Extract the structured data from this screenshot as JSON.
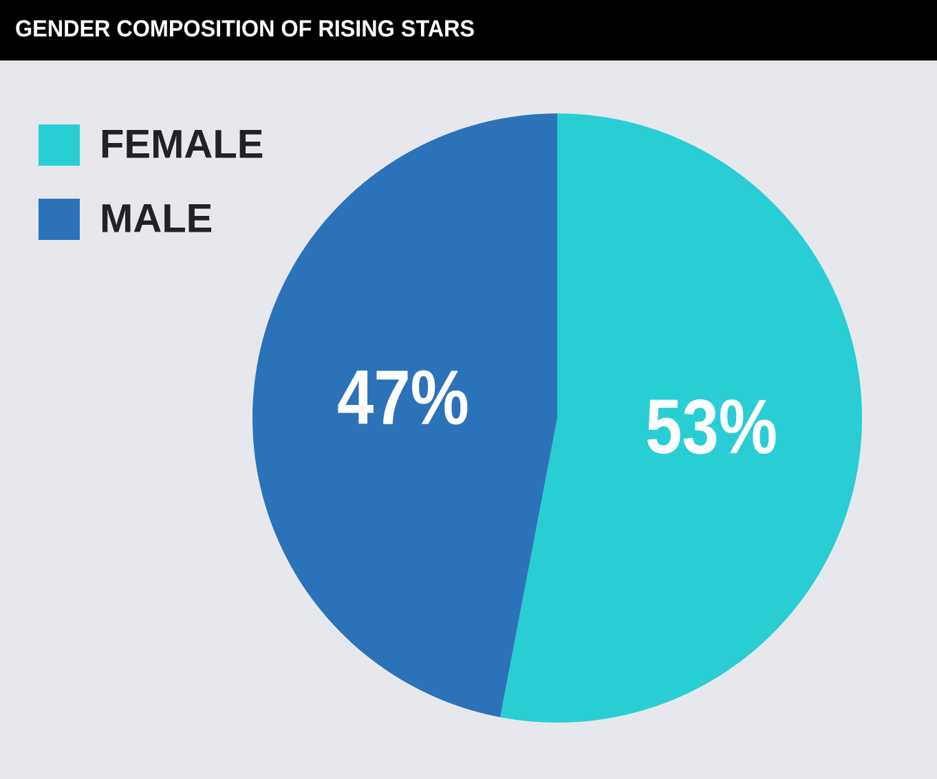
{
  "chart_data": {
    "type": "pie",
    "title": "GENDER COMPOSITION OF RISING STARS",
    "categories": [
      "FEMALE",
      "MALE"
    ],
    "values": [
      53,
      47
    ],
    "value_labels": [
      "53%",
      "47%"
    ],
    "colors": [
      "#29ced4",
      "#2c72b9"
    ],
    "legend": "top-left"
  }
}
